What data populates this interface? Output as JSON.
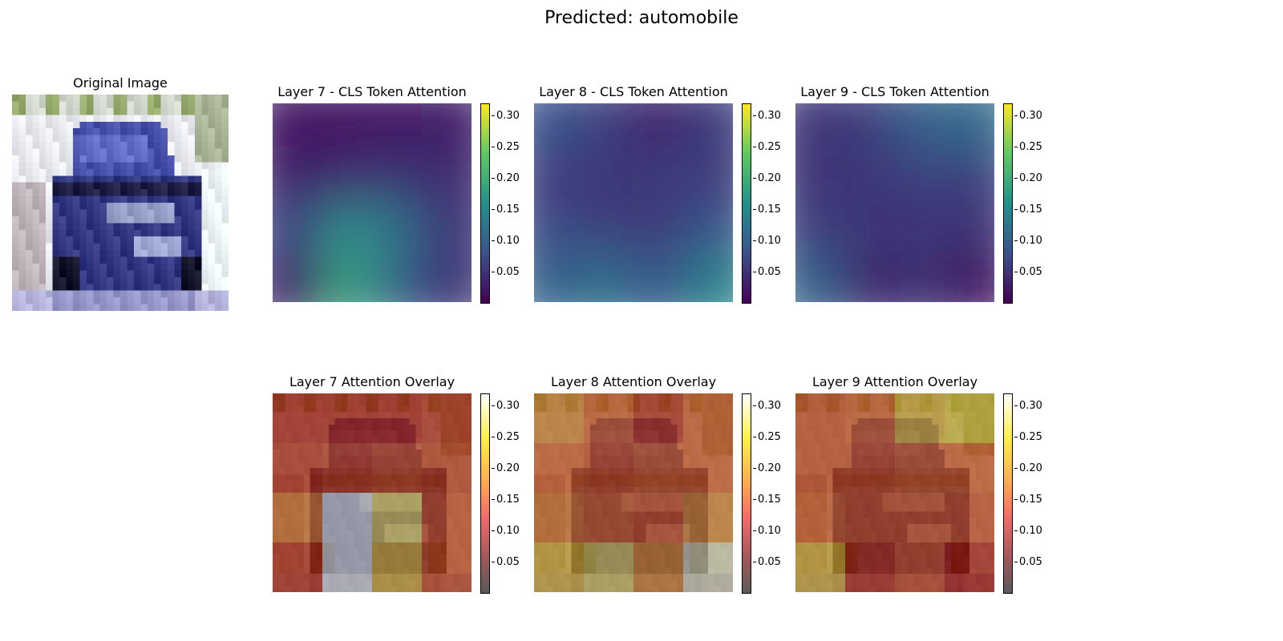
{
  "title": "Predicted: automobile",
  "chart_data": {
    "type": "heatmap",
    "title": "Predicted: automobile",
    "colorbar_ticks": [
      "0.30",
      "0.25",
      "0.20",
      "0.15",
      "0.10",
      "0.05"
    ],
    "colorbar_range": [
      0.0,
      0.32
    ],
    "panels": [
      {
        "id": "original",
        "title": "Original Image",
        "kind": "image"
      },
      {
        "id": "l7",
        "title": "Layer 7 - CLS Token Attention",
        "colormap": "viridis",
        "attention_grid": [
          [
            0.02,
            0.02,
            0.02,
            0.03
          ],
          [
            0.03,
            0.04,
            0.05,
            0.04
          ],
          [
            0.07,
            0.16,
            0.12,
            0.05
          ],
          [
            0.03,
            0.19,
            0.1,
            0.05
          ]
        ]
      },
      {
        "id": "l8",
        "title": "Layer 8 - CLS Token Attention",
        "colormap": "viridis",
        "attention_grid": [
          [
            0.08,
            0.06,
            0.03,
            0.06
          ],
          [
            0.06,
            0.05,
            0.06,
            0.06
          ],
          [
            0.07,
            0.06,
            0.05,
            0.08
          ],
          [
            0.1,
            0.12,
            0.08,
            0.14
          ]
        ]
      },
      {
        "id": "l9",
        "title": "Layer 9 - CLS Token Attention",
        "colormap": "viridis",
        "attention_grid": [
          [
            0.05,
            0.06,
            0.1,
            0.11
          ],
          [
            0.05,
            0.05,
            0.06,
            0.06
          ],
          [
            0.06,
            0.05,
            0.05,
            0.05
          ],
          [
            0.1,
            0.03,
            0.05,
            0.02
          ]
        ]
      },
      {
        "id": "o7",
        "title": "Layer 7 Attention Overlay",
        "colormap": "hot"
      },
      {
        "id": "o8",
        "title": "Layer 8 Attention Overlay",
        "colormap": "hot"
      },
      {
        "id": "o9",
        "title": "Layer 9 Attention Overlay",
        "colormap": "hot"
      }
    ]
  }
}
